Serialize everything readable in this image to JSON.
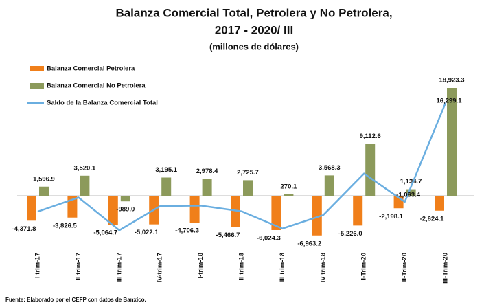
{
  "chart_data": {
    "type": "bar",
    "title": "Balanza Comercial Total, Petrolera y No Petrolera,",
    "subtitle": "2017 - 2020/ III",
    "units": "(millones de dólares)",
    "source": "Fuente: Elaborado por el CEFP con datos de Banxico.",
    "categories": [
      "I trim-17",
      "II trim-17",
      "III trim-17",
      "IV-trim-17",
      "I-trim-18",
      "II trim-18",
      "III trim-18",
      "IV trim-18",
      "I-Trim-20",
      "II-Trim-20",
      "III-Trim-20"
    ],
    "series": [
      {
        "name": "Balanza Comercial Petrolera",
        "color": "#f07f1a",
        "type": "bar",
        "values": [
          -4371.8,
          -3826.5,
          -5064.7,
          -5022.1,
          -4706.3,
          -5466.7,
          -6024.3,
          -6963.2,
          -5226.0,
          -2198.1,
          -2624.1
        ],
        "value_labels": [
          "-4,371.8",
          "-3,826.5",
          "-5,064.7",
          "-5,022.1",
          "-4,706.3",
          "-5,466.7",
          "-6,024.3",
          "-6,963.2",
          "-5,226.0",
          "-2,198.1",
          "-2,624.1"
        ]
      },
      {
        "name": "Balanza Comercial No Petrolera",
        "color": "#8c9a5b",
        "type": "bar",
        "values": [
          1596.9,
          3520.1,
          -989.0,
          3195.1,
          2978.4,
          2725.7,
          270.1,
          3568.3,
          9112.6,
          1134.7,
          18923.3
        ],
        "value_labels": [
          "1,596.9",
          "3,520.1",
          "-989.0",
          "3,195.1",
          "2,978.4",
          "2,725.7",
          "270.1",
          "3,568.3",
          "9,112.6",
          "1,134.7",
          "18,923.3"
        ]
      },
      {
        "name": "Saldo de la Balanza Comercial Total",
        "color": "#6aaee0",
        "type": "line",
        "values": [
          -2774.9,
          -306.4,
          -6053.7,
          -1827.0,
          -1727.9,
          -2741.0,
          -5754.2,
          -3394.9,
          3886.6,
          -1063.4,
          16299.1
        ],
        "value_labels": [
          null,
          null,
          null,
          null,
          null,
          null,
          null,
          null,
          null,
          "-1,063.4",
          "16,299.1"
        ]
      }
    ]
  }
}
